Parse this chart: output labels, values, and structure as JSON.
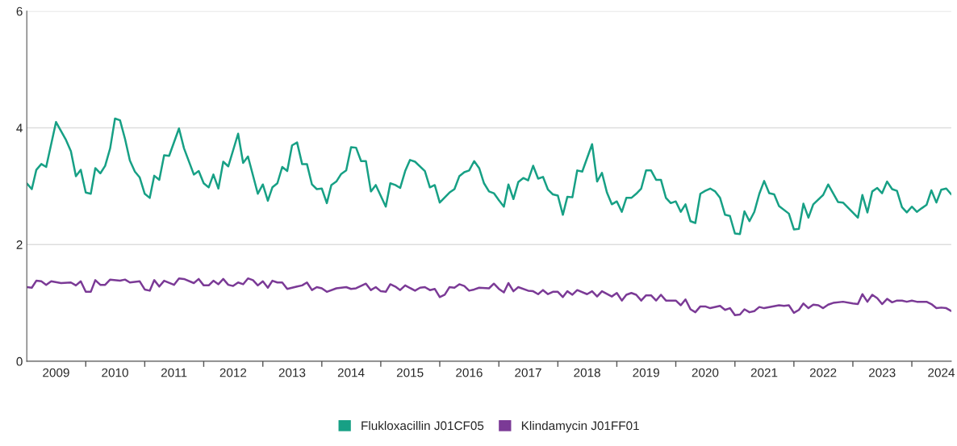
{
  "chart_data": {
    "type": "line",
    "xlim": [
      "2009-01",
      "2024-09"
    ],
    "xticks": [
      {
        "value": "2009-07",
        "label": "2009"
      },
      {
        "value": "2010-01",
        "label": null
      },
      {
        "value": "2010-07",
        "label": "2010"
      },
      {
        "value": "2011-01",
        "label": null
      },
      {
        "value": "2011-07",
        "label": "2011"
      },
      {
        "value": "2012-01",
        "label": null
      },
      {
        "value": "2012-07",
        "label": "2012"
      },
      {
        "value": "2013-01",
        "label": null
      },
      {
        "value": "2013-07",
        "label": "2013"
      },
      {
        "value": "2014-01",
        "label": null
      },
      {
        "value": "2014-07",
        "label": "2014"
      },
      {
        "value": "2015-01",
        "label": null
      },
      {
        "value": "2015-07",
        "label": "2015"
      },
      {
        "value": "2016-01",
        "label": null
      },
      {
        "value": "2016-07",
        "label": "2016"
      },
      {
        "value": "2017-01",
        "label": null
      },
      {
        "value": "2017-07",
        "label": "2017"
      },
      {
        "value": "2018-01",
        "label": null
      },
      {
        "value": "2018-07",
        "label": "2018"
      },
      {
        "value": "2019-01",
        "label": null
      },
      {
        "value": "2019-07",
        "label": "2019"
      },
      {
        "value": "2020-01",
        "label": null
      },
      {
        "value": "2020-07",
        "label": "2020"
      },
      {
        "value": "2021-01",
        "label": null
      },
      {
        "value": "2021-07",
        "label": "2021"
      },
      {
        "value": "2022-01",
        "label": null
      },
      {
        "value": "2022-07",
        "label": "2022"
      },
      {
        "value": "2023-01",
        "label": null
      },
      {
        "value": "2023-07",
        "label": "2023"
      },
      {
        "value": "2024-01",
        "label": null
      },
      {
        "value": "2024-07",
        "label": "2024"
      }
    ],
    "ylim": [
      0,
      6
    ],
    "yticks": [
      0,
      2,
      4,
      6
    ],
    "grid": "y",
    "legend": "bottom",
    "marker": "none",
    "line_style": "solid",
    "series": [
      {
        "name": "Flukloxacillin J01CF05",
        "color": "#17a085",
        "x": [
          "2009-01",
          "2009-02",
          "2009-03",
          "2009-04",
          "2009-05",
          "2009-07",
          "2009-09",
          "2009-10",
          "2009-11",
          "2009-12",
          "2010-01",
          "2010-02",
          "2010-03",
          "2010-04",
          "2010-05",
          "2010-06",
          "2010-07",
          "2010-08",
          "2010-09",
          "2010-10",
          "2010-11",
          "2010-12",
          "2011-01",
          "2011-02",
          "2011-03",
          "2011-04",
          "2011-05",
          "2011-06",
          "2011-08",
          "2011-09",
          "2011-11",
          "2011-12",
          "2012-01",
          "2012-02",
          "2012-03",
          "2012-04",
          "2012-05",
          "2012-06",
          "2012-08",
          "2012-09",
          "2012-10",
          "2012-12",
          "2013-01",
          "2013-02",
          "2013-03",
          "2013-04",
          "2013-05",
          "2013-06",
          "2013-07",
          "2013-08",
          "2013-09",
          "2013-10",
          "2013-11",
          "2013-12",
          "2014-01",
          "2014-02",
          "2014-03",
          "2014-04",
          "2014-05",
          "2014-06",
          "2014-07",
          "2014-08",
          "2014-09",
          "2014-10",
          "2014-11",
          "2014-12",
          "2015-02",
          "2015-03",
          "2015-04",
          "2015-05",
          "2015-06",
          "2015-07",
          "2015-08",
          "2015-10",
          "2015-11",
          "2015-12",
          "2016-01",
          "2016-03",
          "2016-04",
          "2016-05",
          "2016-06",
          "2016-07",
          "2016-08",
          "2016-09",
          "2016-10",
          "2016-11",
          "2016-12",
          "2017-01",
          "2017-02",
          "2017-03",
          "2017-04",
          "2017-05",
          "2017-06",
          "2017-07",
          "2017-08",
          "2017-09",
          "2017-10",
          "2017-11",
          "2017-12",
          "2018-01",
          "2018-02",
          "2018-03",
          "2018-04",
          "2018-05",
          "2018-06",
          "2018-08",
          "2018-09",
          "2018-10",
          "2018-11",
          "2018-12",
          "2019-01",
          "2019-02",
          "2019-03",
          "2019-04",
          "2019-05",
          "2019-06",
          "2019-07",
          "2019-08",
          "2019-09",
          "2019-10",
          "2019-11",
          "2019-12",
          "2020-01",
          "2020-02",
          "2020-03",
          "2020-04",
          "2020-05",
          "2020-06",
          "2020-07",
          "2020-08",
          "2020-09",
          "2020-10",
          "2020-11",
          "2020-12",
          "2021-01",
          "2021-02",
          "2021-03",
          "2021-04",
          "2021-05",
          "2021-06",
          "2021-07",
          "2021-08",
          "2021-09",
          "2021-10",
          "2021-12",
          "2022-01",
          "2022-02",
          "2022-03",
          "2022-04",
          "2022-05",
          "2022-07",
          "2022-08",
          "2022-10",
          "2022-11",
          "2023-02",
          "2023-03",
          "2023-04",
          "2023-05",
          "2023-06",
          "2023-07",
          "2023-08",
          "2023-09",
          "2023-10",
          "2023-11",
          "2023-12",
          "2024-01",
          "2024-02",
          "2024-03",
          "2024-04",
          "2024-05",
          "2024-06",
          "2024-07",
          "2024-08",
          "2024-09"
        ],
        "values": [
          3.05,
          2.95,
          3.28,
          3.38,
          3.33,
          4.1,
          3.79,
          3.6,
          3.17,
          3.28,
          2.89,
          2.87,
          3.31,
          3.22,
          3.35,
          3.65,
          4.16,
          4.13,
          3.81,
          3.44,
          3.25,
          3.15,
          2.87,
          2.8,
          3.18,
          3.11,
          3.53,
          3.52,
          3.99,
          3.65,
          3.2,
          3.26,
          3.05,
          2.98,
          3.2,
          2.96,
          3.42,
          3.34,
          3.9,
          3.4,
          3.51,
          2.87,
          3.03,
          2.75,
          2.98,
          3.05,
          3.33,
          3.26,
          3.7,
          3.75,
          3.38,
          3.38,
          3.03,
          2.95,
          2.96,
          2.71,
          3.02,
          3.08,
          3.21,
          3.27,
          3.67,
          3.66,
          3.43,
          3.43,
          2.91,
          3.02,
          2.65,
          3.05,
          3.02,
          2.97,
          3.26,
          3.45,
          3.42,
          3.26,
          2.98,
          3.02,
          2.72,
          2.89,
          2.95,
          3.17,
          3.24,
          3.27,
          3.43,
          3.31,
          3.05,
          2.91,
          2.88,
          2.76,
          2.65,
          3.03,
          2.78,
          3.07,
          3.14,
          3.1,
          3.35,
          3.13,
          3.16,
          2.94,
          2.86,
          2.84,
          2.51,
          2.82,
          2.81,
          3.27,
          3.25,
          3.72,
          3.08,
          3.23,
          2.89,
          2.69,
          2.74,
          2.56,
          2.8,
          2.8,
          2.87,
          2.96,
          3.27,
          3.27,
          3.11,
          3.11,
          2.8,
          2.71,
          2.74,
          2.56,
          2.69,
          2.4,
          2.37,
          2.87,
          2.92,
          2.96,
          2.91,
          2.8,
          2.51,
          2.49,
          2.19,
          2.18,
          2.57,
          2.4,
          2.56,
          2.87,
          3.09,
          2.88,
          2.86,
          2.66,
          2.53,
          2.26,
          2.27,
          2.7,
          2.46,
          2.69,
          2.85,
          3.03,
          2.73,
          2.72,
          2.46,
          2.85,
          2.55,
          2.91,
          2.97,
          2.88,
          3.08,
          2.95,
          2.92,
          2.64,
          2.55,
          2.65,
          2.56,
          2.62,
          2.68,
          2.93,
          2.72,
          2.94,
          2.96,
          2.86
        ]
      },
      {
        "name": "Klindamycin J01FF01",
        "color": "#7b3a96",
        "x": [
          "2009-01",
          "2009-02",
          "2009-03",
          "2009-04",
          "2009-05",
          "2009-06",
          "2009-08",
          "2009-10",
          "2009-11",
          "2009-12",
          "2010-01",
          "2010-02",
          "2010-03",
          "2010-04",
          "2010-05",
          "2010-06",
          "2010-08",
          "2010-09",
          "2010-10",
          "2010-12",
          "2011-01",
          "2011-02",
          "2011-03",
          "2011-04",
          "2011-05",
          "2011-07",
          "2011-08",
          "2011-09",
          "2011-11",
          "2011-12",
          "2012-01",
          "2012-02",
          "2012-03",
          "2012-04",
          "2012-05",
          "2012-06",
          "2012-07",
          "2012-08",
          "2012-09",
          "2012-10",
          "2012-11",
          "2012-12",
          "2013-01",
          "2013-02",
          "2013-03",
          "2013-04",
          "2013-05",
          "2013-06",
          "2013-08",
          "2013-09",
          "2013-10",
          "2013-11",
          "2013-12",
          "2014-01",
          "2014-02",
          "2014-04",
          "2014-06",
          "2014-07",
          "2014-08",
          "2014-10",
          "2014-11",
          "2014-12",
          "2015-01",
          "2015-02",
          "2015-03",
          "2015-04",
          "2015-05",
          "2015-06",
          "2015-08",
          "2015-09",
          "2015-10",
          "2015-11",
          "2015-12",
          "2016-01",
          "2016-02",
          "2016-03",
          "2016-04",
          "2016-05",
          "2016-06",
          "2016-07",
          "2016-08",
          "2016-09",
          "2016-11",
          "2016-12",
          "2017-01",
          "2017-02",
          "2017-03",
          "2017-04",
          "2017-05",
          "2017-07",
          "2017-08",
          "2017-09",
          "2017-10",
          "2017-11",
          "2017-12",
          "2018-01",
          "2018-02",
          "2018-03",
          "2018-04",
          "2018-05",
          "2018-07",
          "2018-08",
          "2018-09",
          "2018-10",
          "2018-12",
          "2019-01",
          "2019-02",
          "2019-03",
          "2019-04",
          "2019-05",
          "2019-06",
          "2019-07",
          "2019-08",
          "2019-09",
          "2019-10",
          "2019-11",
          "2019-12",
          "2020-01",
          "2020-02",
          "2020-03",
          "2020-04",
          "2020-05",
          "2020-06",
          "2020-07",
          "2020-08",
          "2020-10",
          "2020-11",
          "2020-12",
          "2021-01",
          "2021-02",
          "2021-03",
          "2021-04",
          "2021-05",
          "2021-06",
          "2021-07",
          "2021-10",
          "2021-11",
          "2021-12",
          "2022-01",
          "2022-02",
          "2022-03",
          "2022-04",
          "2022-05",
          "2022-06",
          "2022-07",
          "2022-08",
          "2022-09",
          "2022-11",
          "2023-01",
          "2023-02",
          "2023-03",
          "2023-04",
          "2023-05",
          "2023-06",
          "2023-07",
          "2023-08",
          "2023-09",
          "2023-10",
          "2023-11",
          "2023-12",
          "2024-01",
          "2024-02",
          "2024-04",
          "2024-05",
          "2024-06",
          "2024-07",
          "2024-08",
          "2024-09"
        ],
        "values": [
          1.27,
          1.26,
          1.38,
          1.37,
          1.31,
          1.37,
          1.34,
          1.35,
          1.3,
          1.37,
          1.19,
          1.19,
          1.39,
          1.31,
          1.31,
          1.4,
          1.38,
          1.4,
          1.35,
          1.37,
          1.23,
          1.21,
          1.39,
          1.28,
          1.38,
          1.31,
          1.42,
          1.41,
          1.34,
          1.41,
          1.3,
          1.3,
          1.38,
          1.32,
          1.41,
          1.31,
          1.29,
          1.35,
          1.32,
          1.42,
          1.39,
          1.3,
          1.37,
          1.26,
          1.38,
          1.35,
          1.35,
          1.24,
          1.28,
          1.3,
          1.35,
          1.22,
          1.27,
          1.25,
          1.19,
          1.25,
          1.27,
          1.24,
          1.25,
          1.33,
          1.22,
          1.27,
          1.2,
          1.19,
          1.32,
          1.28,
          1.22,
          1.3,
          1.21,
          1.26,
          1.27,
          1.22,
          1.24,
          1.1,
          1.14,
          1.27,
          1.26,
          1.32,
          1.29,
          1.21,
          1.23,
          1.26,
          1.25,
          1.33,
          1.24,
          1.18,
          1.34,
          1.2,
          1.27,
          1.21,
          1.2,
          1.15,
          1.22,
          1.15,
          1.19,
          1.19,
          1.1,
          1.2,
          1.14,
          1.22,
          1.15,
          1.2,
          1.11,
          1.2,
          1.11,
          1.17,
          1.04,
          1.14,
          1.17,
          1.14,
          1.04,
          1.13,
          1.13,
          1.04,
          1.14,
          1.04,
          1.04,
          1.04,
          0.96,
          1.06,
          0.89,
          0.84,
          0.94,
          0.94,
          0.91,
          0.95,
          0.88,
          0.91,
          0.79,
          0.8,
          0.89,
          0.84,
          0.86,
          0.93,
          0.91,
          0.96,
          0.95,
          0.96,
          0.83,
          0.88,
          0.99,
          0.91,
          0.97,
          0.96,
          0.91,
          0.97,
          1.0,
          1.02,
          0.99,
          0.98,
          1.15,
          1.02,
          1.14,
          1.08,
          0.98,
          1.07,
          1.01,
          1.04,
          1.04,
          1.02,
          1.04,
          1.02,
          1.02,
          0.98,
          0.91,
          0.92,
          0.91,
          0.86
        ]
      }
    ]
  }
}
